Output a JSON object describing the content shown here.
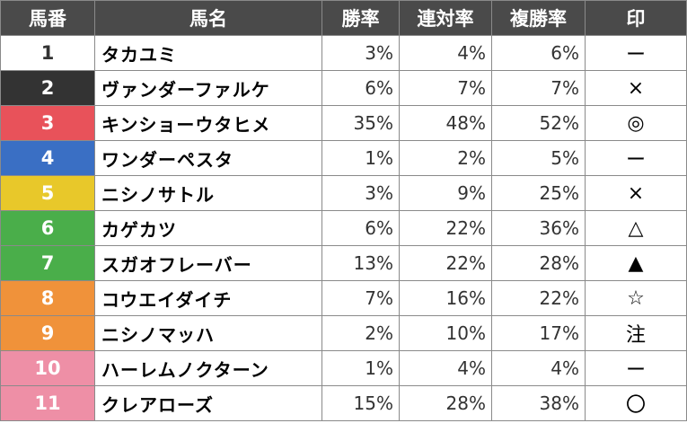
{
  "headers": {
    "num": "馬番",
    "name": "馬名",
    "win": "勝率",
    "rentai": "連対率",
    "fukusho": "複勝率",
    "mark": "印"
  },
  "rows": [
    {
      "num": "1",
      "name": "タカユミ",
      "win": "3%",
      "rentai": "4%",
      "fukusho": "6%",
      "mark": "ー",
      "bg": "#ffffff",
      "fg": "#333333"
    },
    {
      "num": "2",
      "name": "ヴァンダーファルケ",
      "win": "6%",
      "rentai": "7%",
      "fukusho": "7%",
      "mark": "×",
      "bg": "#333333",
      "fg": "#ffffff"
    },
    {
      "num": "3",
      "name": "キンショーウタヒメ",
      "win": "35%",
      "rentai": "48%",
      "fukusho": "52%",
      "mark": "◎",
      "bg": "#e8525a",
      "fg": "#ffffff"
    },
    {
      "num": "4",
      "name": "ワンダーペスタ",
      "win": "1%",
      "rentai": "2%",
      "fukusho": "5%",
      "mark": "ー",
      "bg": "#3a6fc4",
      "fg": "#ffffff"
    },
    {
      "num": "5",
      "name": "ニシノサトル",
      "win": "3%",
      "rentai": "9%",
      "fukusho": "25%",
      "mark": "×",
      "bg": "#e8c82a",
      "fg": "#ffffff"
    },
    {
      "num": "6",
      "name": "カゲカツ",
      "win": "6%",
      "rentai": "22%",
      "fukusho": "36%",
      "mark": "△",
      "bg": "#4aae4a",
      "fg": "#ffffff"
    },
    {
      "num": "7",
      "name": "スガオフレーバー",
      "win": "13%",
      "rentai": "22%",
      "fukusho": "28%",
      "mark": "▲",
      "bg": "#4aae4a",
      "fg": "#ffffff"
    },
    {
      "num": "8",
      "name": "コウエイダイチ",
      "win": "7%",
      "rentai": "16%",
      "fukusho": "22%",
      "mark": "☆",
      "bg": "#f0923a",
      "fg": "#ffffff"
    },
    {
      "num": "9",
      "name": "ニシノマッハ",
      "win": "2%",
      "rentai": "10%",
      "fukusho": "17%",
      "mark": "注",
      "bg": "#f0923a",
      "fg": "#ffffff"
    },
    {
      "num": "10",
      "name": "ハーレムノクターン",
      "win": "1%",
      "rentai": "4%",
      "fukusho": "4%",
      "mark": "ー",
      "bg": "#ee8fa6",
      "fg": "#ffffff"
    },
    {
      "num": "11",
      "name": "クレアローズ",
      "win": "15%",
      "rentai": "28%",
      "fukusho": "38%",
      "mark": "〇",
      "bg": "#ee8fa6",
      "fg": "#ffffff"
    }
  ]
}
